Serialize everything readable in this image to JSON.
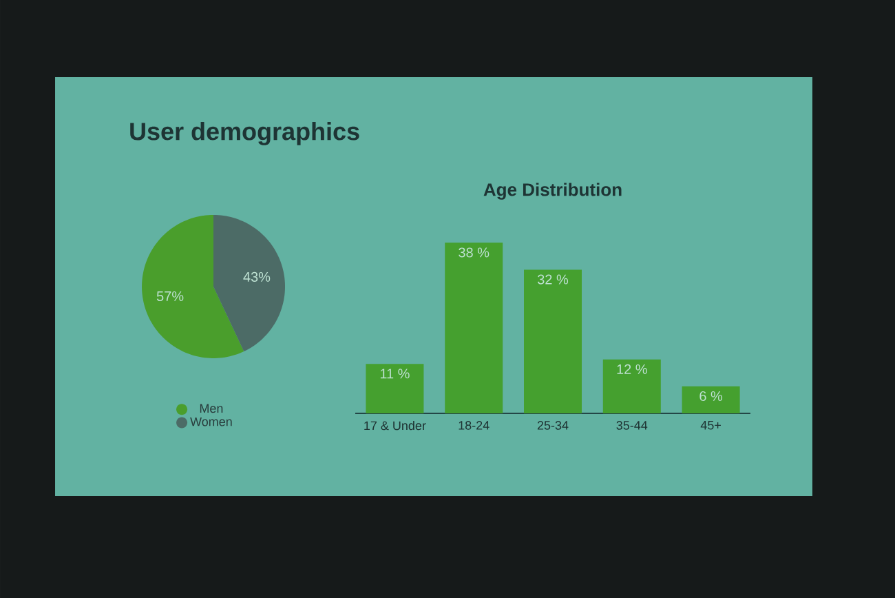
{
  "chart_data": [
    {
      "type": "pie",
      "title": "User demographics",
      "categories": [
        "Men",
        "Women"
      ],
      "values": [
        57,
        43
      ],
      "colors": [
        "#4a9e2c",
        "#4c6b66"
      ],
      "value_labels": [
        "57%",
        "43%"
      ],
      "legend": "bottom"
    },
    {
      "type": "bar",
      "title": "Age Distribution",
      "categories": [
        "17 & Under",
        "18-24",
        "25-34",
        "35-44",
        "45+"
      ],
      "values": [
        11,
        38,
        32,
        12,
        6
      ],
      "color": "#45a02f",
      "value_labels": [
        "11 %",
        "38 %",
        "32 %",
        "12 %",
        "6 %"
      ]
    }
  ]
}
